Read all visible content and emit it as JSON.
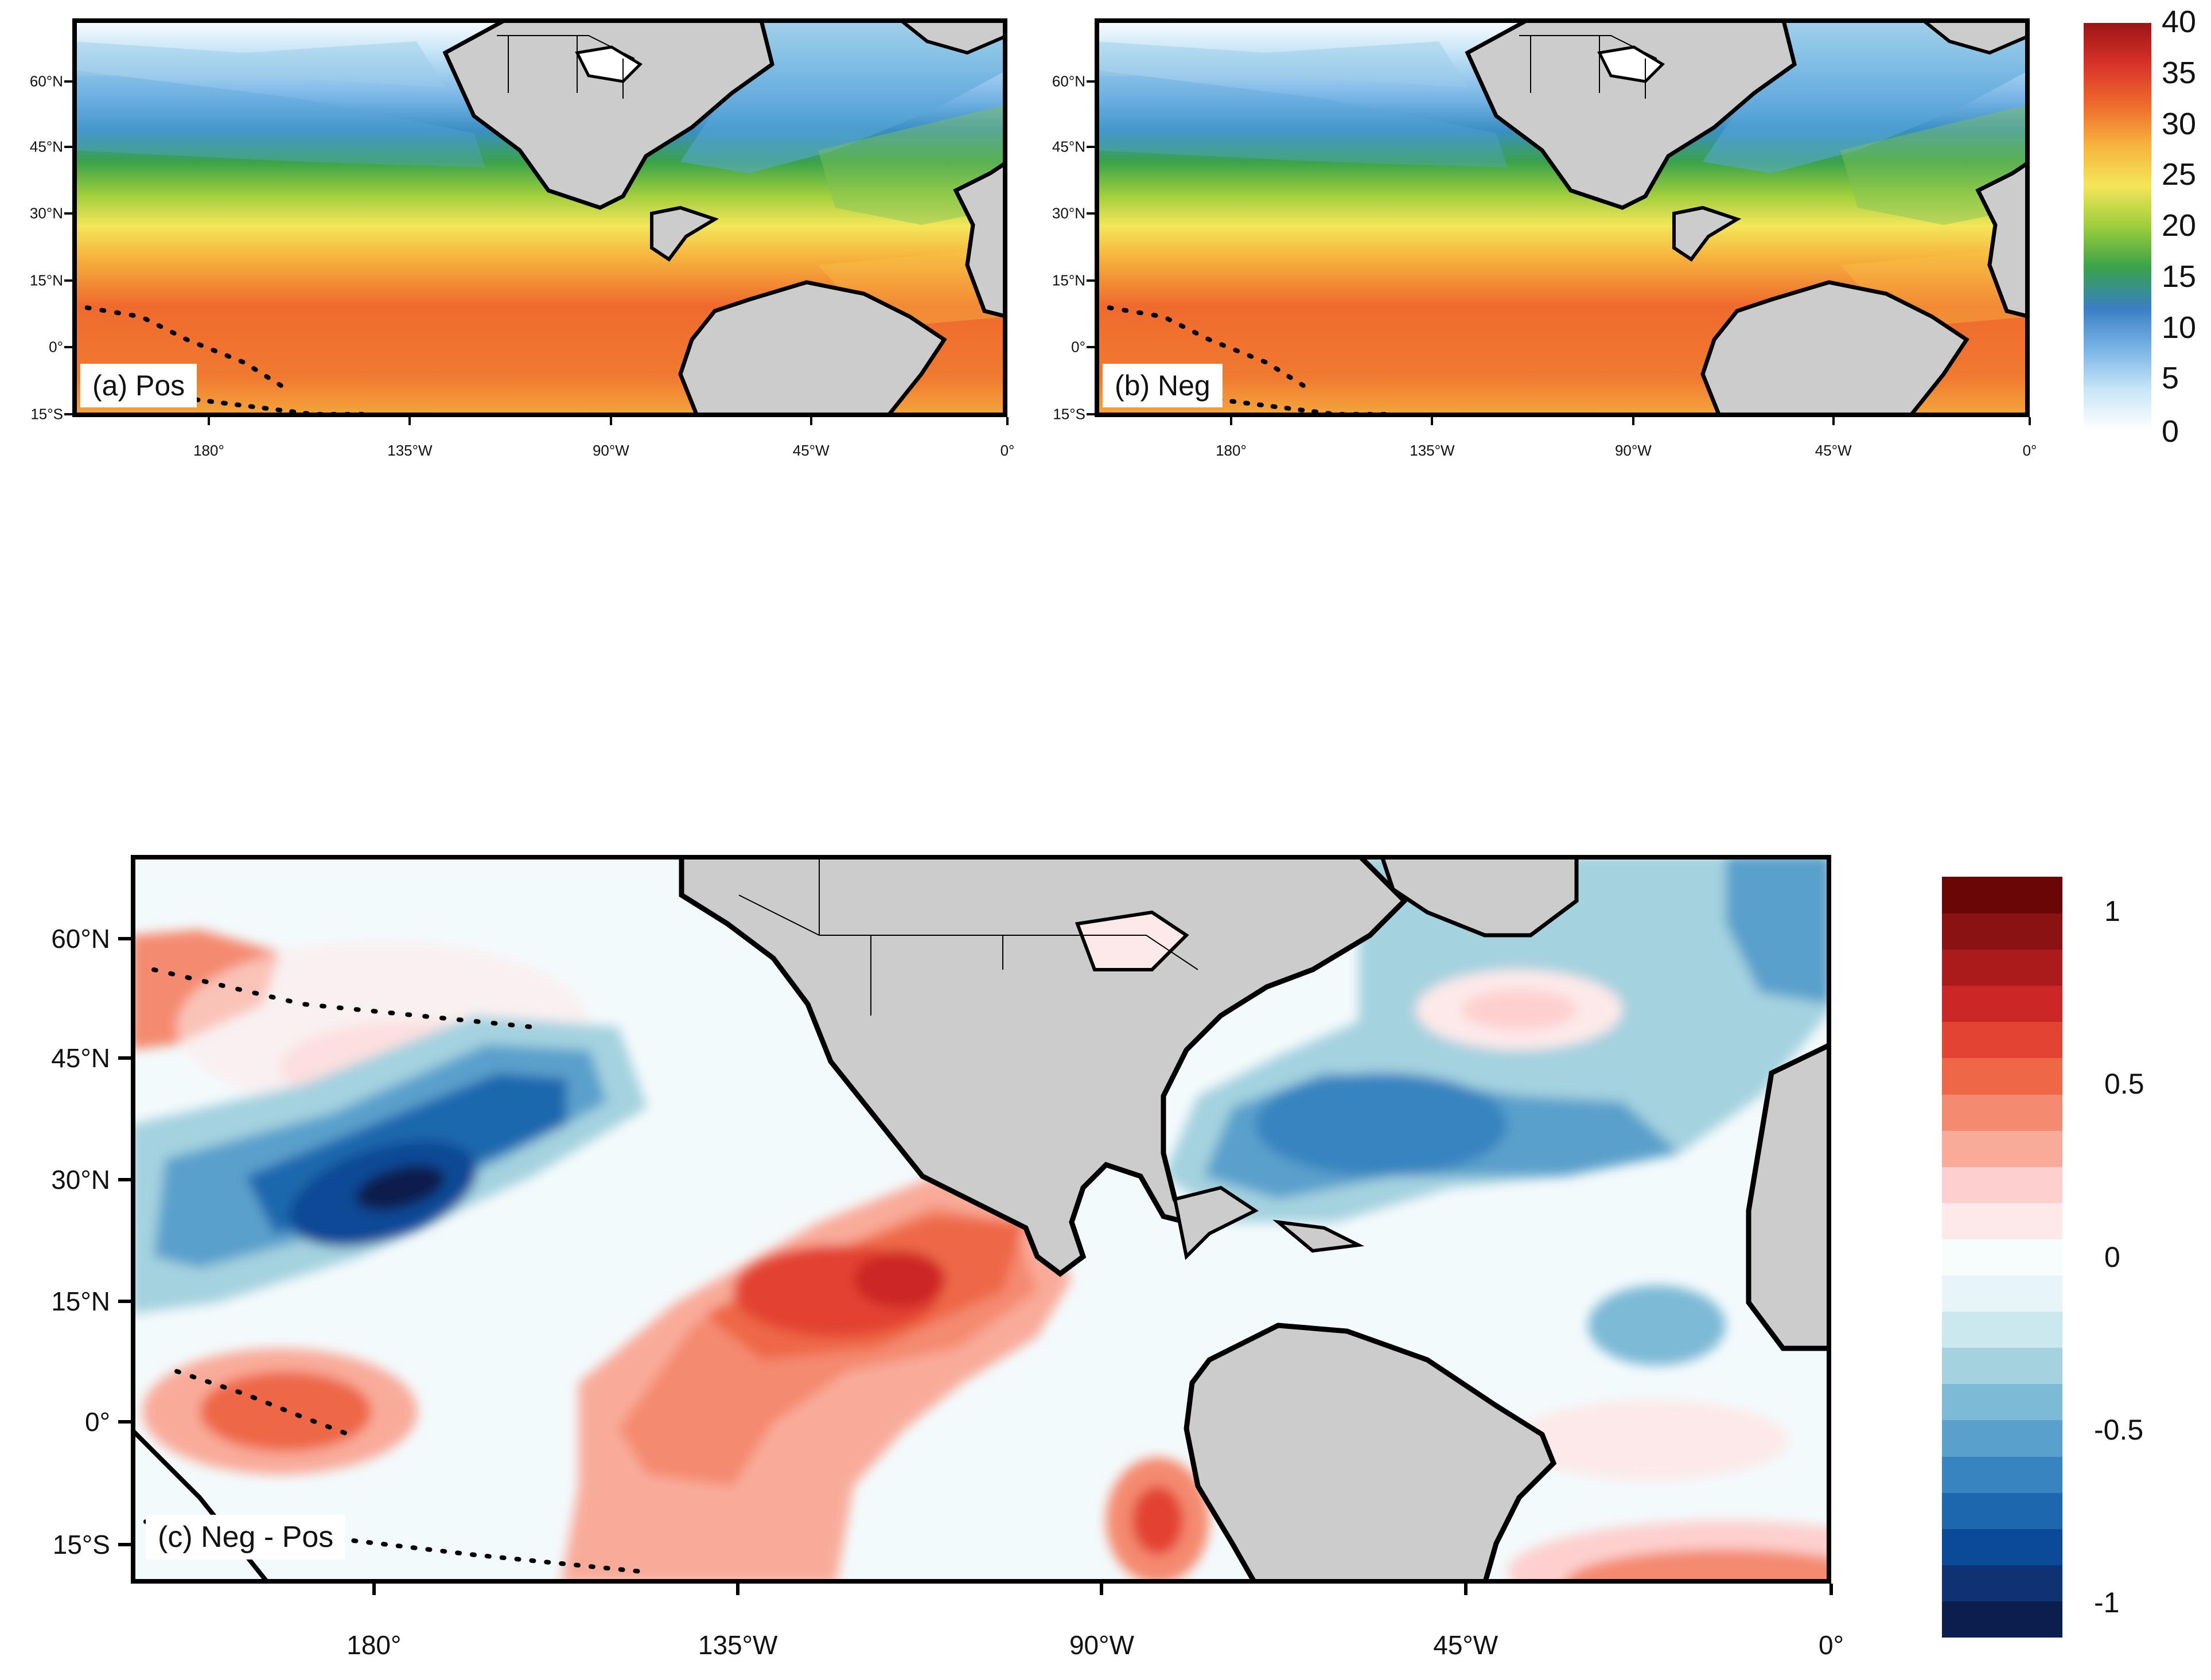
{
  "panels": {
    "a": {
      "label": "(a) Pos"
    },
    "b": {
      "label": "(b) Neg"
    },
    "c": {
      "label": "(c) Neg - Pos"
    }
  },
  "lat_ticks_top": [
    "60°N",
    "45°N",
    "30°N",
    "15°N",
    "0°",
    "15°S"
  ],
  "lon_ticks_top": [
    "180°",
    "135°W",
    "90°W",
    "45°W",
    "0°"
  ],
  "lat_ticks_bottom": [
    "60°N",
    "45°N",
    "30°N",
    "15°N",
    "0°",
    "15°S"
  ],
  "lon_ticks_bottom": [
    "180°",
    "135°W",
    "90°W",
    "45°W",
    "0°"
  ],
  "colorbar_top": {
    "labels": [
      "40",
      "35",
      "30",
      "25",
      "20",
      "15",
      "10",
      "5",
      "0"
    ],
    "min": 0,
    "max": 40,
    "colors": [
      "#ffffff",
      "#c8e6f7",
      "#78b4e6",
      "#3a7fc4",
      "#3aa24a",
      "#9ccd3c",
      "#f4e65a",
      "#f6b33e",
      "#ef6a2d",
      "#d8322a",
      "#9b1515"
    ]
  },
  "colorbar_bottom": {
    "labels": [
      "1",
      "0.5",
      "0",
      "-0.5",
      "-1"
    ],
    "min": -1.1,
    "max": 1.1,
    "colors": [
      "#0b1f4e",
      "#0e3272",
      "#0b4a96",
      "#1d67ae",
      "#3784c0",
      "#5aa0cc",
      "#7dbad6",
      "#a4d2df",
      "#cbe8ee",
      "#e7f5f8",
      "#f7fcfd",
      "#fde9e9",
      "#fdd0cf",
      "#f9ab9a",
      "#f48a6f",
      "#ee6847",
      "#e34333",
      "#cd2626",
      "#ac1b1b",
      "#8a1212",
      "#690707"
    ]
  },
  "colors": {
    "land": "#cccccc",
    "coast": "#000000",
    "border": "#000000"
  }
}
